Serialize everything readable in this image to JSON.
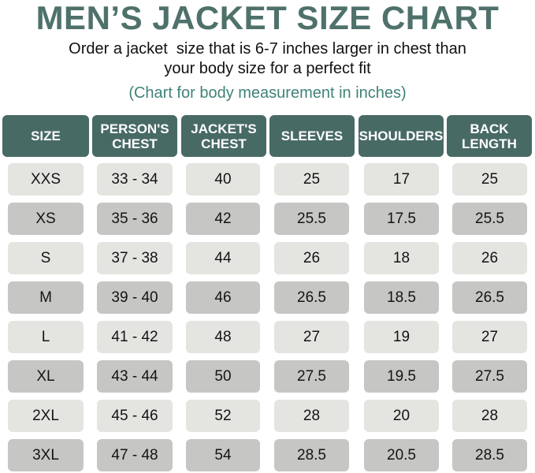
{
  "title": "MEN’S JACKET SIZE CHART",
  "subtitle_line1": "Order a jacket  size that is 6-7 inches larger in chest than",
  "subtitle_line2": "your body size for a perfect fit",
  "note": "(Chart for body measurement in inches)",
  "colors": {
    "title": "#4f716b",
    "header_bg": "#486a65",
    "note": "#3f8378",
    "row_light": "#e4e4e0",
    "row_dark": "#c6c6c4"
  },
  "chart_data": {
    "type": "table",
    "columns": [
      {
        "line1": "SIZE",
        "line2": ""
      },
      {
        "line1": "PERSON'S",
        "line2": "CHEST"
      },
      {
        "line1": "JACKET'S",
        "line2": "CHEST"
      },
      {
        "line1": "SLEEVES",
        "line2": ""
      },
      {
        "line1": "SHOULDERS",
        "line2": ""
      },
      {
        "line1": "BACK",
        "line2": "LENGTH"
      }
    ],
    "rows": [
      [
        "XXS",
        "33 - 34",
        "40",
        "25",
        "17",
        "25"
      ],
      [
        "XS",
        "35 - 36",
        "42",
        "25.5",
        "17.5",
        "25.5"
      ],
      [
        "S",
        "37 - 38",
        "44",
        "26",
        "18",
        "26"
      ],
      [
        "M",
        "39 - 40",
        "46",
        "26.5",
        "18.5",
        "26.5"
      ],
      [
        "L",
        "41 - 42",
        "48",
        "27",
        "19",
        "27"
      ],
      [
        "XL",
        "43 - 44",
        "50",
        "27.5",
        "19.5",
        "27.5"
      ],
      [
        "2XL",
        "45 - 46",
        "52",
        "28",
        "20",
        "28"
      ],
      [
        "3XL",
        "47 - 48",
        "54",
        "28.5",
        "20.5",
        "28.5"
      ]
    ]
  }
}
